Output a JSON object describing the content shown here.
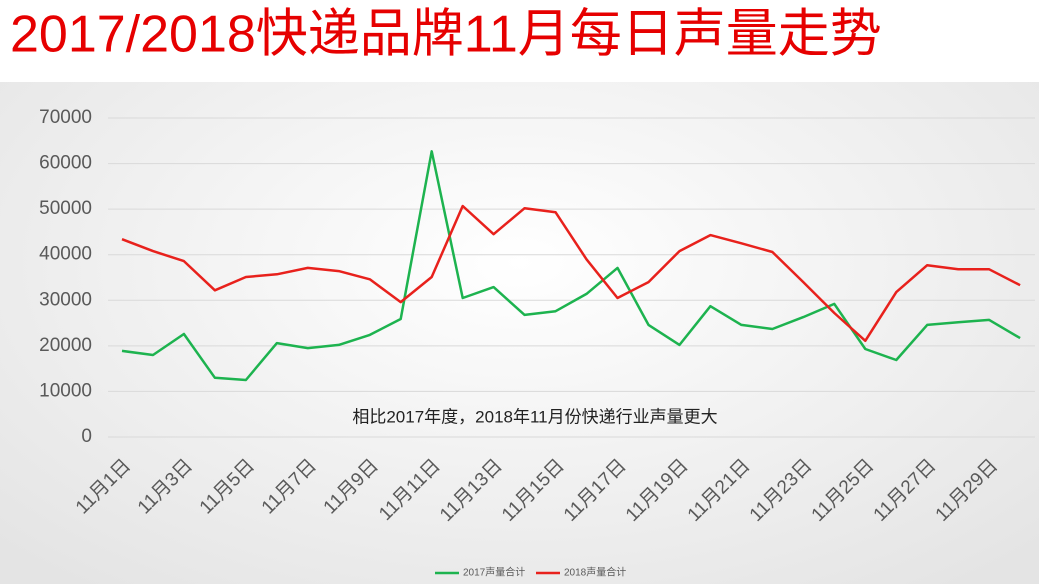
{
  "chart_data": {
    "type": "line",
    "title": "2017/2018快递品牌11月每日声量走势",
    "annotation": "相比2017年度，2018年11月份快递行业声量更大",
    "categories": [
      "11月1日",
      null,
      "11月3日",
      null,
      "11月5日",
      null,
      "11月7日",
      null,
      "11月9日",
      null,
      "11月11日",
      null,
      "11月13日",
      null,
      "11月15日",
      null,
      "11月17日",
      null,
      "11月19日",
      null,
      "11月21日",
      null,
      "11月23日",
      null,
      "11月25日",
      null,
      "11月27日",
      null,
      "11月29日",
      null
    ],
    "series": [
      {
        "name": "2017声量合计",
        "color": "#1db34f",
        "values": [
          18900,
          18000,
          22600,
          13000,
          12500,
          20600,
          19500,
          20200,
          22400,
          25900,
          62700,
          30500,
          32900,
          26800,
          27600,
          31400,
          37100,
          24600,
          20200,
          28700,
          24600,
          23700,
          26300,
          29200,
          19300,
          16900,
          24600,
          25200,
          25700,
          21700
        ]
      },
      {
        "name": "2018声量合计",
        "color": "#e8211c",
        "values": [
          43400,
          40800,
          38600,
          32200,
          35100,
          35700,
          37100,
          36400,
          34600,
          29600,
          35100,
          50700,
          44500,
          50200,
          49300,
          39000,
          30500,
          34000,
          40800,
          44300,
          42500,
          40600,
          34000,
          27200,
          21100,
          31800,
          37700,
          36800,
          36800,
          33300
        ]
      }
    ],
    "ylim": [
      0,
      70000
    ],
    "yticks": [
      0,
      10000,
      20000,
      30000,
      40000,
      50000,
      60000,
      70000
    ],
    "grid": true,
    "legend": "bottom"
  }
}
